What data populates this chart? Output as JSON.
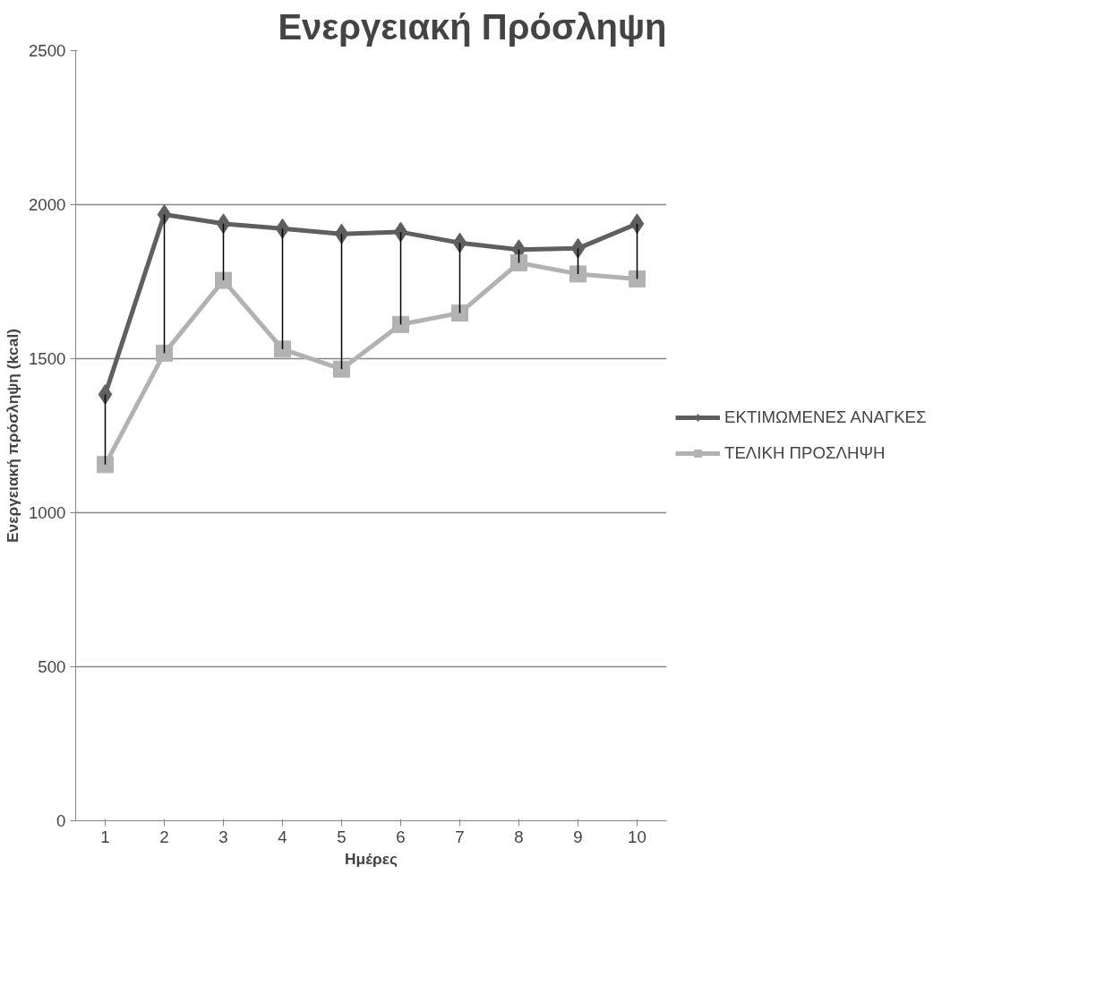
{
  "chart_data": {
    "type": "line",
    "title": "Ενεργειακή Πρόσληψη",
    "xlabel": "Ημέρες",
    "ylabel": "Ενεργειακή πρόσληψη (kcal)",
    "categories": [
      "1",
      "2",
      "3",
      "4",
      "5",
      "6",
      "7",
      "8",
      "9",
      "10"
    ],
    "series": [
      {
        "name": "ΕΚΤΙΜΩΜΕΝΕΣ ΑΝΑΓΚΕΣ",
        "color": "#5f5f5f",
        "marker": "diamond",
        "values": [
          1384,
          1968,
          1938,
          1922,
          1905,
          1911,
          1876,
          1854,
          1858,
          1938
        ],
        "errors": [
          [
            1156,
            1384
          ],
          [
            1518,
            1968
          ],
          [
            1754,
            1938
          ],
          [
            1531,
            1922
          ],
          [
            1466,
            1905
          ],
          [
            1611,
            1911
          ],
          [
            1648,
            1876
          ],
          [
            1811,
            1854
          ],
          [
            1775,
            1858
          ],
          [
            1759,
            1938
          ]
        ]
      },
      {
        "name": "ΤΕΛΙΚΗ ΠΡΟΣΛΗΨΗ",
        "color": "#b2b2b2",
        "marker": "square",
        "values": [
          1156,
          1518,
          1754,
          1531,
          1466,
          1611,
          1648,
          1811,
          1775,
          1759
        ]
      }
    ],
    "ylim": [
      0,
      2500
    ],
    "yticks": [
      0,
      500,
      1000,
      1500,
      2000,
      2500
    ],
    "grid": "y",
    "legend": "right",
    "line_style": "solid"
  }
}
